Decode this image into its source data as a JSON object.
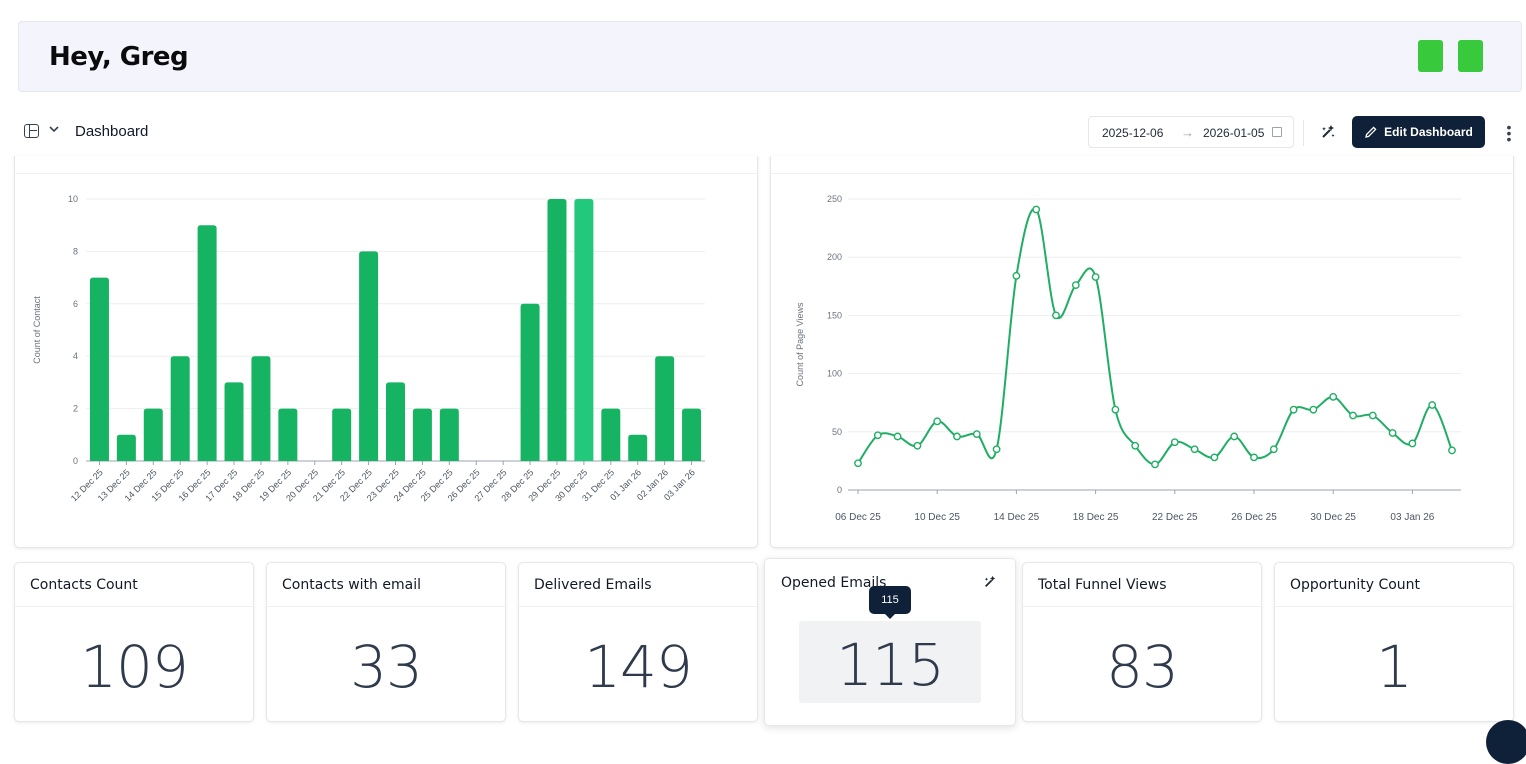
{
  "greeting": {
    "title": "Hey, Greg"
  },
  "toolbar": {
    "dashboard_label": "Dashboard",
    "date_from": "2025-12-06",
    "date_to": "2026-01-05",
    "arrow": "→",
    "edit_label": "Edit Dashboard",
    "more": "⋮"
  },
  "colors": {
    "accent_green": "#39c93c",
    "bar_green": "#16b462",
    "bar_hover": "#22c97a",
    "line_green": "#1fae63",
    "navy": "#0f2138"
  },
  "chart_data": [
    {
      "type": "bar",
      "ylabel": "Count of Contact",
      "ylim": [
        0,
        10
      ],
      "yticks": [
        0,
        2,
        4,
        6,
        8,
        10
      ],
      "categories": [
        "12 Dec 25",
        "13 Dec 25",
        "14 Dec 25",
        "15 Dec 25",
        "16 Dec 25",
        "17 Dec 25",
        "18 Dec 25",
        "19 Dec 25",
        "20 Dec 25",
        "21 Dec 25",
        "22 Dec 25",
        "23 Dec 25",
        "24 Dec 25",
        "25 Dec 25",
        "26 Dec 25",
        "27 Dec 25",
        "28 Dec 25",
        "29 Dec 25",
        "30 Dec 25",
        "31 Dec 25",
        "01 Jan 26",
        "02 Jan 26",
        "03 Jan 26"
      ],
      "values": [
        7,
        1,
        2,
        4,
        9,
        3,
        4,
        2,
        0,
        2,
        8,
        3,
        2,
        2,
        0,
        0,
        6,
        10,
        10,
        2,
        1,
        4,
        2
      ],
      "highlighted": "30 Dec 25",
      "grid": true
    },
    {
      "type": "line",
      "ylabel": "Count of Page Views",
      "ylim": [
        0,
        250
      ],
      "yticks": [
        0,
        50,
        100,
        150,
        200,
        250
      ],
      "xticks": [
        "06 Dec 25",
        "10 Dec 25",
        "14 Dec 25",
        "18 Dec 25",
        "22 Dec 25",
        "26 Dec 25",
        "30 Dec 25",
        "03 Jan 26"
      ],
      "x_start": "06 Dec 25",
      "values": [
        23,
        47,
        46,
        38,
        59,
        46,
        48,
        35,
        184,
        241,
        150,
        176,
        183,
        69,
        38,
        22,
        41,
        35,
        28,
        46,
        28,
        35,
        69,
        69,
        80,
        64,
        64,
        49,
        40,
        73,
        34
      ],
      "grid": true
    }
  ],
  "stats": [
    {
      "title": "Contacts Count",
      "value": "109"
    },
    {
      "title": "Contacts with email",
      "value": "33"
    },
    {
      "title": "Delivered Emails",
      "value": "149"
    },
    {
      "title": "Opened Emails",
      "value": "115"
    },
    {
      "title": "Total Funnel Views",
      "value": "83"
    },
    {
      "title": "Opportunity Count",
      "value": "1"
    }
  ],
  "tooltip": {
    "value": "115"
  }
}
